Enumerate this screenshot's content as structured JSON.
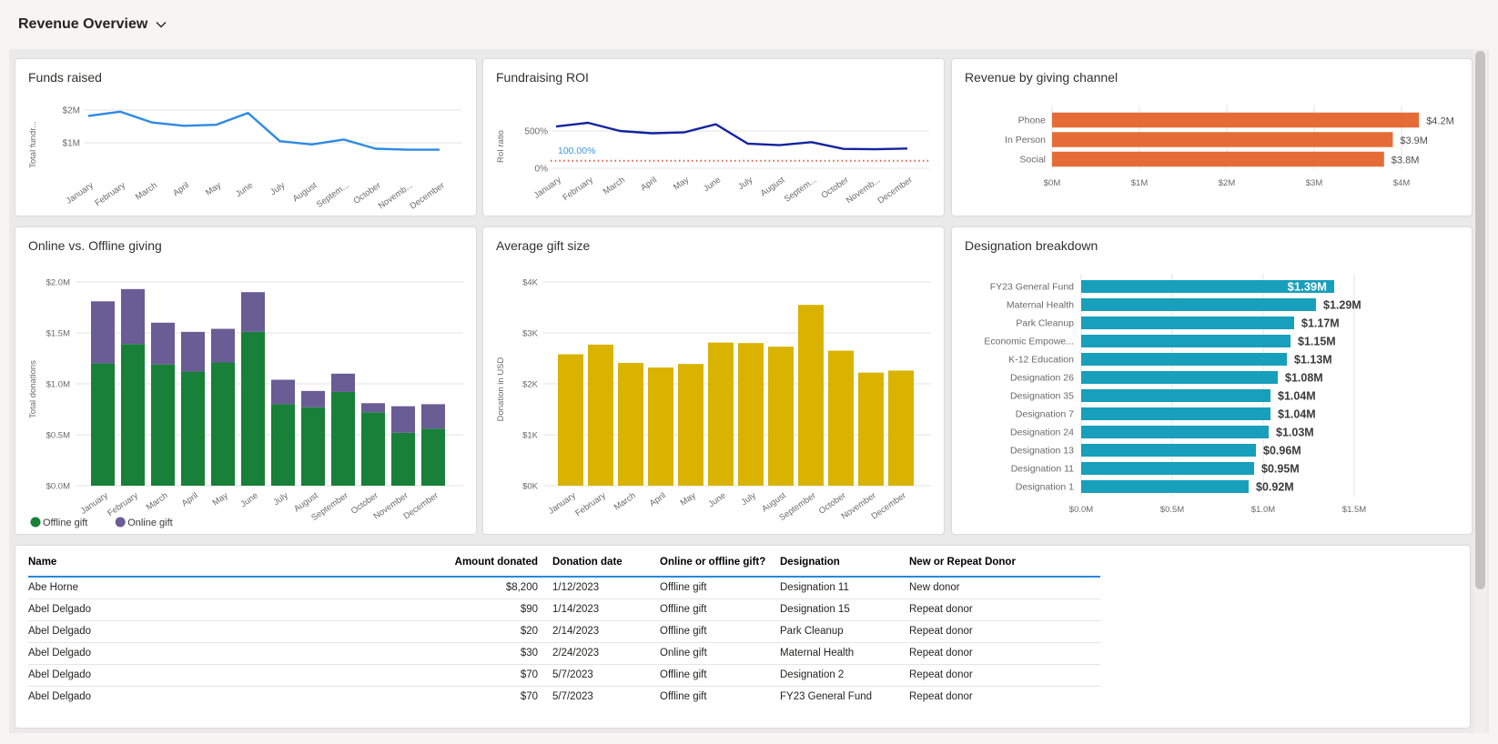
{
  "page": {
    "title": "Revenue Overview"
  },
  "icons": {
    "chevron_down": "chevron-down",
    "legend_dot": "circle"
  },
  "chart_data": {
    "funds_raised": {
      "type": "line",
      "title": "Funds raised",
      "ylabel": "Total fundr...",
      "categories": [
        "January",
        "February",
        "March",
        "April",
        "May",
        "June",
        "July",
        "August",
        "September",
        "October",
        "November",
        "December"
      ],
      "categories_display": [
        "January",
        "February",
        "March",
        "April",
        "May",
        "June",
        "July",
        "August",
        "Septem...",
        "October",
        "Novemb...",
        "December"
      ],
      "values": [
        1.82,
        1.95,
        1.62,
        1.52,
        1.55,
        1.91,
        1.05,
        0.95,
        1.1,
        0.82,
        0.79,
        0.79
      ],
      "unit": "$M",
      "yticks": [
        {
          "value": 1,
          "label": "$1M"
        },
        {
          "value": 2,
          "label": "$2M"
        }
      ],
      "line_color": "#2d8ae5"
    },
    "fundraising_roi": {
      "type": "line",
      "title": "Fundraising ROI",
      "ylabel": "RoI ratio",
      "categories": [
        "January",
        "February",
        "March",
        "April",
        "May",
        "June",
        "July",
        "August",
        "September",
        "October",
        "November",
        "December"
      ],
      "categories_display": [
        "January",
        "February",
        "March",
        "April",
        "May",
        "June",
        "July",
        "August",
        "Septem...",
        "October",
        "Novemb...",
        "December"
      ],
      "values": [
        560,
        610,
        500,
        470,
        480,
        590,
        330,
        310,
        350,
        260,
        255,
        265
      ],
      "unit": "%",
      "yticks": [
        {
          "value": 0,
          "label": "0%"
        },
        {
          "value": 500,
          "label": "500%"
        }
      ],
      "reference_line": {
        "value": 100,
        "label": "100.00%",
        "color": "#d8604a",
        "label_color": "#3b97e3"
      },
      "line_color": "#12239e"
    },
    "revenue_by_channel": {
      "type": "bar-horizontal",
      "title": "Revenue by giving channel",
      "categories": [
        "Phone",
        "In Person",
        "Social"
      ],
      "values": [
        4.2,
        3.9,
        3.8
      ],
      "unit": "$M",
      "value_labels": [
        "$4.2M",
        "$3.9M",
        "$3.8M"
      ],
      "xticks": [
        {
          "value": 0,
          "label": "$0M"
        },
        {
          "value": 1,
          "label": "$1M"
        },
        {
          "value": 2,
          "label": "$2M"
        },
        {
          "value": 3,
          "label": "$3M"
        },
        {
          "value": 4,
          "label": "$4M"
        }
      ],
      "bar_color": "#e66c37"
    },
    "online_vs_offline": {
      "type": "bar-stacked",
      "title": "Online vs. Offline giving",
      "ylabel": "Total donations",
      "categories": [
        "January",
        "February",
        "March",
        "April",
        "May",
        "June",
        "July",
        "August",
        "September",
        "October",
        "November",
        "December"
      ],
      "categories_display": [
        "January",
        "February",
        "March",
        "April",
        "May",
        "June",
        "July",
        "August",
        "September",
        "October",
        "November",
        "December"
      ],
      "series": [
        {
          "name": "Offline gift",
          "color": "#188038",
          "values": [
            1.2,
            1.39,
            1.19,
            1.12,
            1.21,
            1.51,
            0.8,
            0.77,
            0.92,
            0.72,
            0.52,
            0.56
          ]
        },
        {
          "name": "Online gift",
          "color": "#6a5c94",
          "values": [
            0.61,
            0.54,
            0.41,
            0.39,
            0.33,
            0.39,
            0.24,
            0.16,
            0.18,
            0.09,
            0.26,
            0.24
          ]
        }
      ],
      "unit": "$M",
      "yticks": [
        {
          "value": 0,
          "label": "$0.0M"
        },
        {
          "value": 0.5,
          "label": "$0.5M"
        },
        {
          "value": 1,
          "label": "$1.0M"
        },
        {
          "value": 1.5,
          "label": "$1.5M"
        },
        {
          "value": 2,
          "label": "$2.0M"
        }
      ]
    },
    "average_gift_size": {
      "type": "bar",
      "title": "Average gift size",
      "ylabel": "Donation in USD",
      "categories": [
        "January",
        "February",
        "March",
        "April",
        "May",
        "June",
        "July",
        "August",
        "September",
        "October",
        "November",
        "December"
      ],
      "categories_display": [
        "January",
        "February",
        "March",
        "April",
        "May",
        "June",
        "July",
        "August",
        "September",
        "October",
        "November",
        "December"
      ],
      "values": [
        2.58,
        2.77,
        2.41,
        2.32,
        2.39,
        2.81,
        2.8,
        2.73,
        3.55,
        2.65,
        2.22,
        2.26
      ],
      "unit": "$K",
      "yticks": [
        {
          "value": 0,
          "label": "$0K"
        },
        {
          "value": 1,
          "label": "$1K"
        },
        {
          "value": 2,
          "label": "$2K"
        },
        {
          "value": 3,
          "label": "$3K"
        },
        {
          "value": 4,
          "label": "$4K"
        }
      ],
      "bar_color": "#d9b300"
    },
    "designation_breakdown": {
      "type": "bar-horizontal",
      "title": "Designation breakdown",
      "categories": [
        "FY23 General Fund",
        "Maternal Health",
        "Park Cleanup",
        "Economic Empowe...",
        "K-12 Education",
        "Designation 26",
        "Designation 35",
        "Designation 7",
        "Designation 24",
        "Designation 13",
        "Designation 11",
        "Designation 1"
      ],
      "values": [
        1.39,
        1.29,
        1.17,
        1.15,
        1.13,
        1.08,
        1.04,
        1.04,
        1.03,
        0.96,
        0.95,
        0.92
      ],
      "unit": "$M",
      "value_labels": [
        "$1.39M",
        "$1.29M",
        "$1.17M",
        "$1.15M",
        "$1.13M",
        "$1.08M",
        "$1.04M",
        "$1.04M",
        "$1.03M",
        "$0.96M",
        "$0.95M",
        "$0.92M"
      ],
      "first_label_inside": true,
      "xticks": [
        {
          "value": 0,
          "label": "$0.0M"
        },
        {
          "value": 0.5,
          "label": "$0.5M"
        },
        {
          "value": 1,
          "label": "$1.0M"
        },
        {
          "value": 1.5,
          "label": "$1.5M"
        }
      ],
      "bar_color": "#179fbb"
    }
  },
  "table": {
    "headers": [
      "Name",
      "Amount donated",
      "Donation date",
      "Online or offline gift?",
      "Designation",
      "New or Repeat Donor"
    ],
    "rows": [
      [
        "Abe Horne",
        "$8,200",
        "1/12/2023",
        "Offline gift",
        "Designation 11",
        "New donor"
      ],
      [
        "Abel Delgado",
        "$90",
        "1/14/2023",
        "Offline gift",
        "Designation 15",
        "Repeat donor"
      ],
      [
        "Abel Delgado",
        "$20",
        "2/14/2023",
        "Offline gift",
        "Park Cleanup",
        "Repeat donor"
      ],
      [
        "Abel Delgado",
        "$30",
        "2/24/2023",
        "Online gift",
        "Maternal Health",
        "Repeat donor"
      ],
      [
        "Abel Delgado",
        "$70",
        "5/7/2023",
        "Offline gift",
        "Designation 2",
        "Repeat donor"
      ],
      [
        "Abel Delgado",
        "$70",
        "5/7/2023",
        "Offline gift",
        "FY23 General Fund",
        "Repeat donor"
      ]
    ],
    "header_underline_color": "#2b88d8"
  }
}
